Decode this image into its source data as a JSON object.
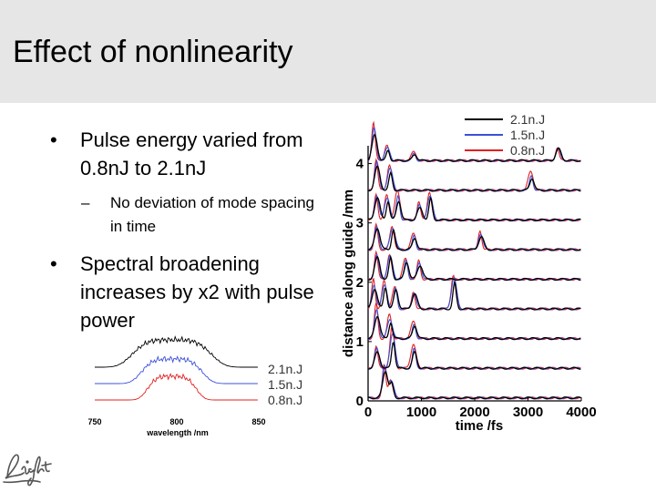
{
  "slide": {
    "title": "Effect of nonlinearity",
    "bullets": [
      {
        "text": "Pulse energy varied from 0.8nJ to 2.1nJ",
        "sub": [
          "No deviation of mode spacing in time"
        ]
      },
      {
        "text": "Spectral broadening increases by x2 with pulse power",
        "sub": []
      }
    ],
    "bullet_char": "•",
    "dash_char": "–"
  },
  "colors": {
    "title_bg": "#e6e6e6",
    "series_2_1": "#000000",
    "series_1_5": "#3c50d8",
    "series_0_8": "#e02020"
  },
  "chart_data": [
    {
      "type": "line",
      "xlabel": "time /fs",
      "ylabel": "distance along guide /mm",
      "xlim": [
        0,
        4000
      ],
      "ylim": [
        0,
        4.3
      ],
      "xticks": [
        0,
        1000,
        2000,
        3000,
        4000
      ],
      "xtick_labels": [
        "0",
        "1000",
        "2000",
        "3000",
        "4000"
      ],
      "yticks": [
        0,
        1,
        2,
        3,
        4
      ],
      "ytick_labels": [
        "0",
        "1",
        "2",
        "3",
        "4"
      ],
      "legend_position": "top-right",
      "series": [
        {
          "name": "2.1n.J"
        },
        {
          "name": "1.5n.J"
        },
        {
          "name": "0.8n.J"
        }
      ],
      "traces": [
        {
          "baseline": 0.05,
          "peaks": [
            [
              300,
              0.55
            ],
            [
              420,
              0.3
            ]
          ]
        },
        {
          "baseline": 0.55,
          "peaks": [
            [
              150,
              0.35
            ],
            [
              450,
              0.65
            ],
            [
              850,
              0.4
            ]
          ]
        },
        {
          "baseline": 1.05,
          "peaks": [
            [
              150,
              0.55
            ],
            [
              400,
              0.4
            ],
            [
              850,
              0.3
            ]
          ]
        },
        {
          "baseline": 1.55,
          "peaks": [
            [
              100,
              0.5
            ],
            [
              300,
              0.5
            ],
            [
              500,
              0.4
            ],
            [
              850,
              0.3
            ],
            [
              1600,
              0.55
            ]
          ]
        },
        {
          "baseline": 2.05,
          "peaks": [
            [
              150,
              0.5
            ],
            [
              400,
              0.45
            ],
            [
              700,
              0.35
            ],
            [
              950,
              0.3
            ]
          ]
        },
        {
          "baseline": 2.55,
          "peaks": [
            [
              150,
              0.45
            ],
            [
              450,
              0.4
            ],
            [
              850,
              0.25
            ],
            [
              2100,
              0.3
            ]
          ]
        },
        {
          "baseline": 3.05,
          "peaks": [
            [
              150,
              0.45
            ],
            [
              350,
              0.4
            ],
            [
              550,
              0.45
            ],
            [
              950,
              0.3
            ],
            [
              1150,
              0.5
            ]
          ]
        },
        {
          "baseline": 3.55,
          "peaks": [
            [
              150,
              0.5
            ],
            [
              400,
              0.4
            ],
            [
              3050,
              0.3
            ]
          ]
        },
        {
          "baseline": 4.05,
          "peaks": [
            [
              100,
              0.6
            ],
            [
              350,
              0.25
            ],
            [
              850,
              0.15
            ],
            [
              3550,
              0.25
            ]
          ]
        }
      ]
    },
    {
      "type": "line",
      "xlabel": "wavelength /nm",
      "xlim": [
        750,
        850
      ],
      "xticks": [
        750,
        800,
        850
      ],
      "xtick_labels": [
        "750",
        "800",
        "850"
      ],
      "legend_position": "right",
      "series": [
        {
          "name": "2.1n.J",
          "offset": 2
        },
        {
          "name": "1.5n.J",
          "offset": 1
        },
        {
          "name": "0.8n.J",
          "offset": 0
        }
      ]
    }
  ]
}
